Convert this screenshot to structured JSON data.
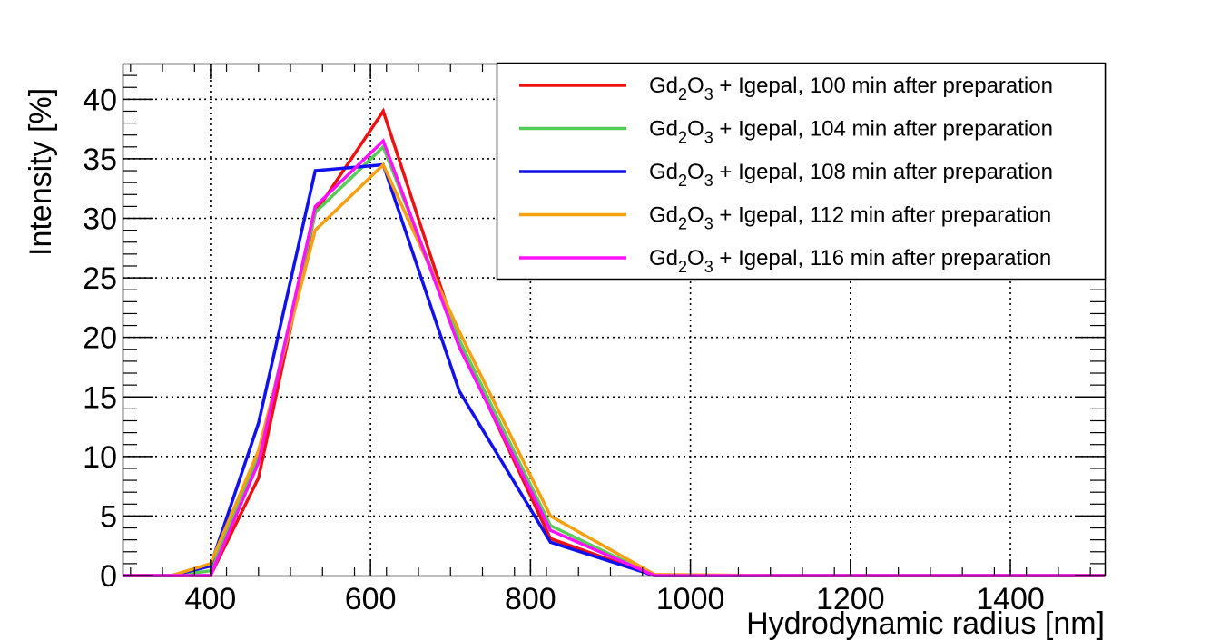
{
  "chart_data": {
    "type": "line",
    "title": "",
    "xlabel": "Hydrodynamic radius [nm]",
    "ylabel": "Intensity [%]",
    "xlim": [
      290,
      1518
    ],
    "ylim": [
      0,
      43
    ],
    "grid": true,
    "legend_position": "top-right",
    "x_ticks": [
      400,
      600,
      800,
      1000,
      1200,
      1400
    ],
    "x_tick_labels": [
      "400",
      "600",
      "800",
      "1000",
      "1200",
      "1400"
    ],
    "y_ticks": [
      0,
      5,
      10,
      15,
      20,
      25,
      30,
      35,
      40
    ],
    "y_tick_labels": [
      "0",
      "5",
      "10",
      "15",
      "20",
      "25",
      "30",
      "35",
      "40"
    ],
    "series": [
      {
        "name": "Gd2O3 + Igepal, 100 min after preparation",
        "legend": {
          "prefix": "Gd",
          "sub1": "2",
          "mid": "O",
          "sub2": "3",
          "suffix": " + Igepal, 100 min after preparation"
        },
        "color": "#ee1111",
        "x": [
          290,
          351,
          400,
          460,
          531,
          616,
          711,
          825,
          955,
          1100,
          1300,
          1518
        ],
        "y": [
          0,
          0,
          0,
          8.2,
          30.5,
          39.0,
          19.5,
          3.1,
          0,
          0,
          0,
          0
        ]
      },
      {
        "name": "Gd2O3 + Igepal, 104 min after preparation",
        "legend": {
          "prefix": "Gd",
          "sub1": "2",
          "mid": "O",
          "sub2": "3",
          "suffix": " + Igepal, 104 min after preparation"
        },
        "color": "#55cc55",
        "x": [
          290,
          351,
          400,
          460,
          531,
          616,
          711,
          825,
          955,
          1100,
          1300,
          1518
        ],
        "y": [
          0,
          0,
          0.4,
          10.0,
          30.5,
          36.0,
          19.8,
          4.2,
          0,
          0,
          0,
          0
        ]
      },
      {
        "name": "Gd2O3 + Igepal, 108 min after preparation",
        "legend": {
          "prefix": "Gd",
          "sub1": "2",
          "mid": "O",
          "sub2": "3",
          "suffix": " + Igepal, 108 min after preparation"
        },
        "color": "#1111ee",
        "x": [
          290,
          351,
          400,
          460,
          531,
          616,
          711,
          825,
          955,
          1100,
          1300,
          1518
        ],
        "y": [
          0,
          0,
          0.8,
          12.8,
          34.0,
          34.5,
          15.5,
          2.8,
          0,
          0,
          0,
          0
        ]
      },
      {
        "name": "Gd2O3 + Igepal, 112 min after preparation",
        "legend": {
          "prefix": "Gd",
          "sub1": "2",
          "mid": "O",
          "sub2": "3",
          "suffix": " + Igepal, 112 min after preparation"
        },
        "color": "#f5a010",
        "x": [
          290,
          351,
          400,
          460,
          531,
          616,
          711,
          825,
          955,
          1100,
          1300,
          1518
        ],
        "y": [
          0,
          0,
          1.0,
          10.5,
          29.0,
          34.5,
          20.5,
          5.0,
          0.1,
          0,
          0,
          0
        ]
      },
      {
        "name": "Gd2O3 + Igepal, 116 min after preparation",
        "legend": {
          "prefix": "Gd",
          "sub1": "2",
          "mid": "O",
          "sub2": "3",
          "suffix": " + Igepal, 116 min after preparation"
        },
        "color": "#ff11ff",
        "x": [
          290,
          351,
          400,
          460,
          531,
          616,
          711,
          825,
          955,
          1100,
          1300,
          1518
        ],
        "y": [
          0,
          0,
          0,
          9.5,
          31.0,
          36.5,
          19.2,
          3.8,
          0,
          0,
          0,
          0
        ]
      }
    ]
  }
}
